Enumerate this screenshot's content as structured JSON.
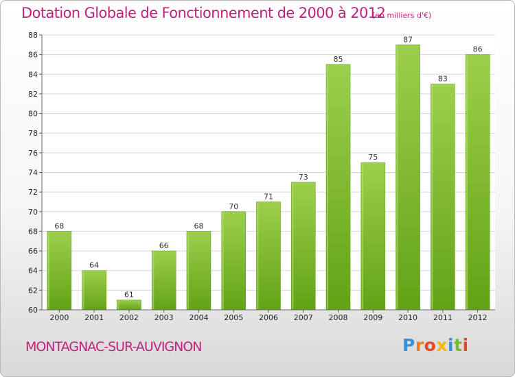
{
  "header": {
    "title": "Dotation Globale de Fonctionnement de 2000 à 2012",
    "unit_note": "(en milliers d'€)"
  },
  "footer": {
    "commune": "MONTAGNAC-SUR-AUVIGNON",
    "logo_letters": [
      "P",
      "r",
      "o",
      "x",
      "i",
      "t",
      "i"
    ],
    "logo_colors": [
      "#3a8fd4",
      "#f07d1a",
      "#e04a2a",
      "#f5b800",
      "#3a8fd4",
      "#7ab83a",
      "#e04a2a"
    ]
  },
  "colors": {
    "bar_light": "#9ccf4c",
    "bar_dark": "#62a316",
    "text_accent": "#c0217d",
    "grid": "#d8d8d8"
  },
  "chart_data": {
    "type": "bar",
    "categories": [
      "2000",
      "2001",
      "2002",
      "2003",
      "2004",
      "2005",
      "2006",
      "2007",
      "2008",
      "2009",
      "2010",
      "2011",
      "2012"
    ],
    "values": [
      68,
      64,
      61,
      66,
      68,
      70,
      71,
      73,
      85,
      75,
      87,
      83,
      86
    ],
    "title": "Dotation Globale de Fonctionnement de 2000 à 2012",
    "subtitle": "(en milliers d'€)",
    "xlabel": "",
    "ylabel": "",
    "ylim": [
      60,
      88
    ],
    "yticks": [
      60,
      62,
      64,
      66,
      68,
      70,
      72,
      74,
      76,
      78,
      80,
      82,
      84,
      86,
      88
    ],
    "grid": true,
    "data_labels": true
  }
}
